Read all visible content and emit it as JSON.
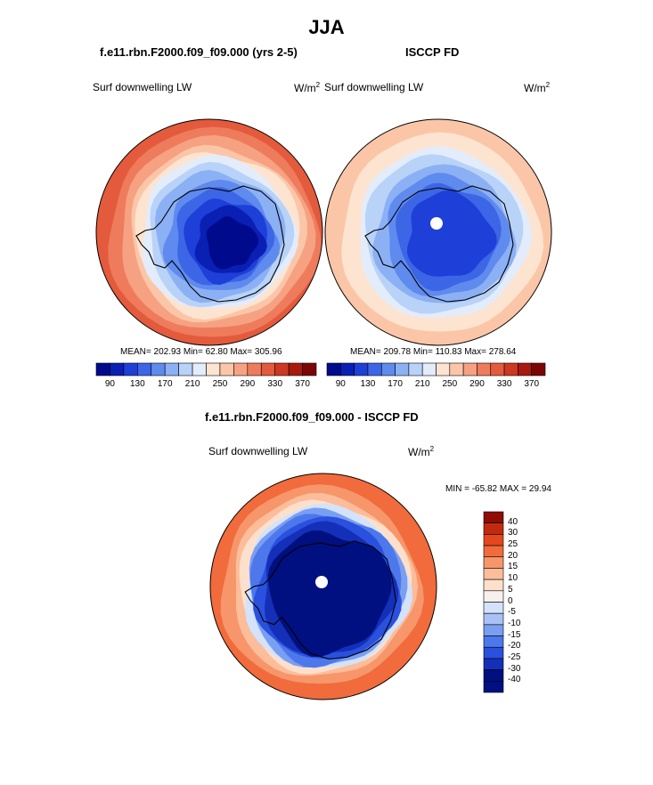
{
  "title": "JJA",
  "panels": [
    {
      "title": "f.e11.rbn.F2000.f09_f09.000 (yrs 2-5)",
      "variable": "Surf downwelling LW",
      "units_base": "W/m",
      "units_exp": "2",
      "stats": "MEAN= 202.93  Min=  62.80  Max= 305.96",
      "colorbar_labels": [
        "90",
        "130",
        "170",
        "210",
        "250",
        "290",
        "330",
        "370"
      ]
    },
    {
      "title": "ISCCP FD",
      "variable": "Surf downwelling LW",
      "units_base": "W/m",
      "units_exp": "2",
      "stats": "MEAN= 209.78  Min= 110.83  Max= 278.64",
      "colorbar_labels": [
        "90",
        "130",
        "170",
        "210",
        "250",
        "290",
        "330",
        "370"
      ]
    },
    {
      "title": "f.e11.rbn.F2000.f09_f09.000 - ISCCP FD",
      "variable": "Surf downwelling LW",
      "units_base": "W/m",
      "units_exp": "2",
      "stats": "MIN = -65.82 MAX =  29.94",
      "colorbar_labels": [
        "40",
        "30",
        "25",
        "20",
        "15",
        "10",
        "5",
        "0",
        "-5",
        "-10",
        "-15",
        "-20",
        "-25",
        "-30",
        "-40"
      ]
    }
  ],
  "colors": {
    "sequential": [
      "#000a8c",
      "#0a1fb4",
      "#1e3fd8",
      "#3c66e6",
      "#5f8aee",
      "#8cb0f4",
      "#b9d2f8",
      "#e3ecfb",
      "#fde4d0",
      "#fbc6a8",
      "#f6a282",
      "#ee7c5c",
      "#e45a3c",
      "#cc3822",
      "#a71a0e",
      "#7a0606"
    ],
    "diverging": [
      "#001080",
      "#1430b8",
      "#2a50de",
      "#4d78ec",
      "#7a9ef2",
      "#a8c2f6",
      "#d4e2fb",
      "#f6f0ee",
      "#fde0cc",
      "#fbbd9a",
      "#f7966a",
      "#f16b3c",
      "#e4471e",
      "#c22a10",
      "#8e0c04"
    ]
  },
  "chart_data": [
    {
      "type": "heatmap",
      "projection": "south-polar-stereographic",
      "title": "f.e11.rbn.F2000.f09_f09.000 (yrs 2-5)",
      "variable": "Surf downwelling LW",
      "units": "W/m2",
      "levels": [
        90,
        110,
        130,
        150,
        170,
        190,
        210,
        230,
        250,
        270,
        290,
        310,
        330,
        350,
        370
      ],
      "summary": {
        "mean": 202.93,
        "min": 62.8,
        "max": 305.96
      }
    },
    {
      "type": "heatmap",
      "projection": "south-polar-stereographic",
      "title": "ISCCP FD",
      "variable": "Surf downwelling LW",
      "units": "W/m2",
      "levels": [
        90,
        110,
        130,
        150,
        170,
        190,
        210,
        230,
        250,
        270,
        290,
        310,
        330,
        350,
        370
      ],
      "summary": {
        "mean": 209.78,
        "min": 110.83,
        "max": 278.64
      }
    },
    {
      "type": "heatmap",
      "projection": "south-polar-stereographic",
      "title": "f.e11.rbn.F2000.f09_f09.000 - ISCCP FD",
      "variable": "Surf downwelling LW",
      "units": "W/m2",
      "levels": [
        -40,
        -30,
        -25,
        -20,
        -15,
        -10,
        -5,
        0,
        5,
        10,
        15,
        20,
        25,
        30,
        40
      ],
      "summary": {
        "min": -65.82,
        "max": 29.94
      }
    }
  ]
}
